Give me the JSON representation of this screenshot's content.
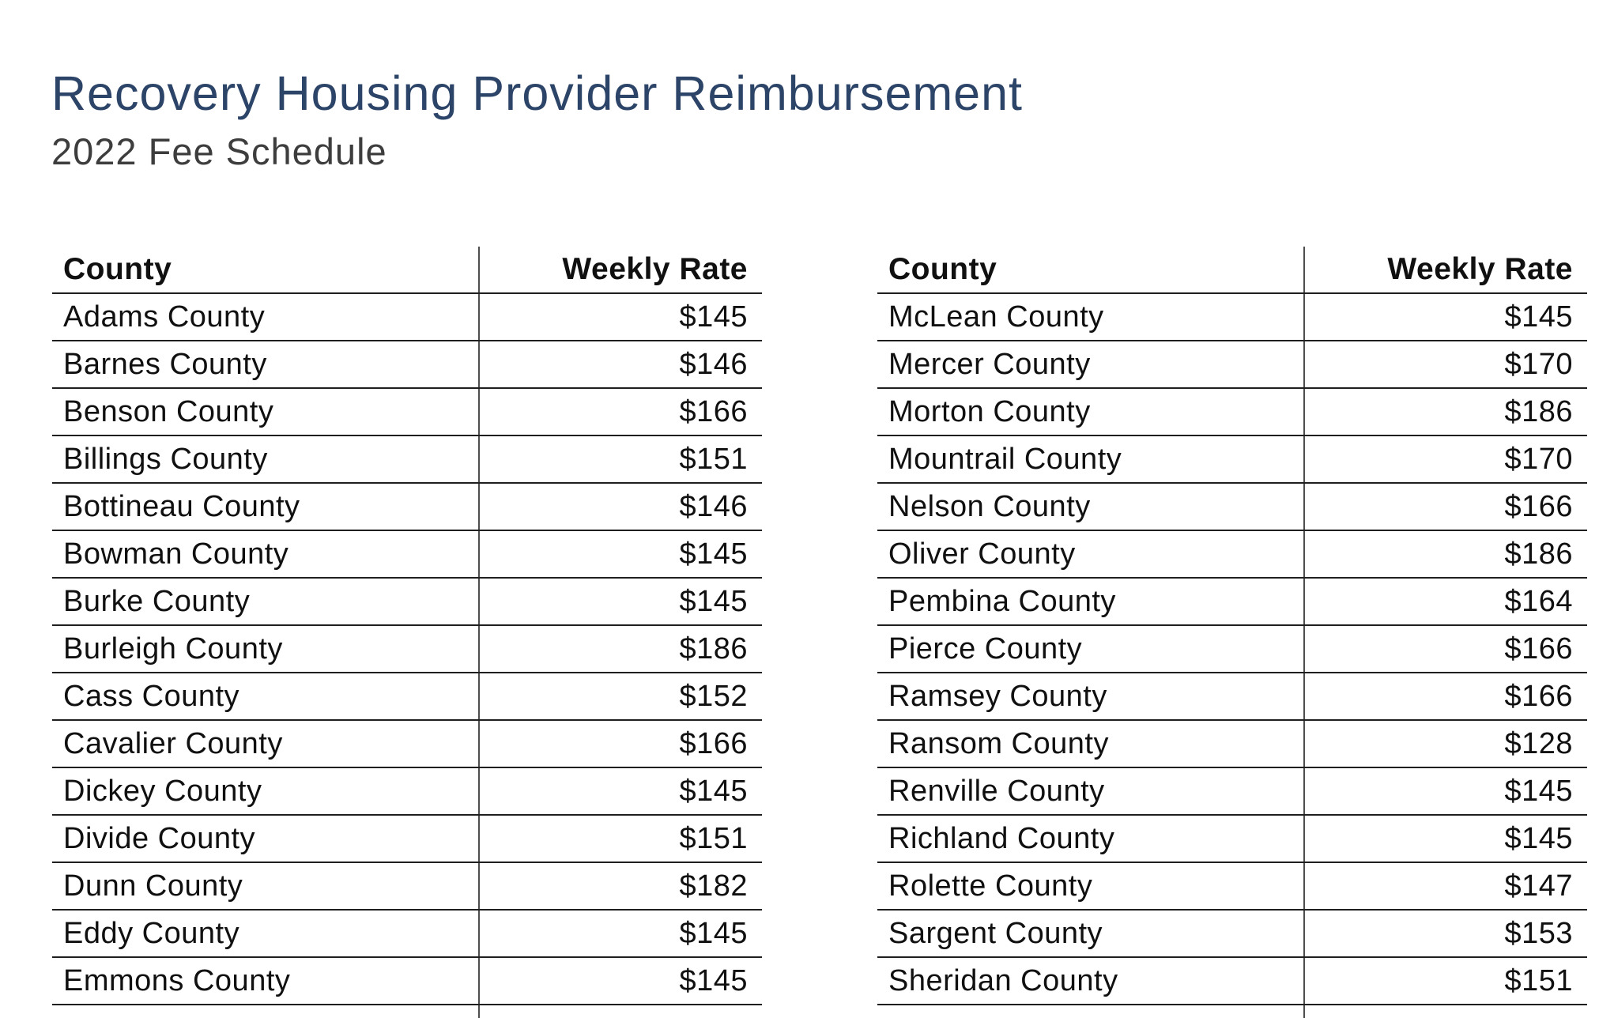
{
  "page": {
    "title": "Recovery Housing Provider Reimbursement",
    "subtitle": "2022 Fee Schedule"
  },
  "colors": {
    "title_navy": "#2b4468",
    "subtitle_gray": "#3d3d3d",
    "table_text": "#101010",
    "row_line": "#1f1f1f",
    "column_divider": "#4e4e4e",
    "background": "#ffffff"
  },
  "tables": [
    {
      "headers": {
        "county": "County",
        "rate": "Weekly Rate"
      },
      "rows": [
        {
          "county": "Adams County",
          "rate": "$145"
        },
        {
          "county": "Barnes County",
          "rate": "$146"
        },
        {
          "county": "Benson County",
          "rate": "$166"
        },
        {
          "county": "Billings County",
          "rate": "$151"
        },
        {
          "county": "Bottineau County",
          "rate": "$146"
        },
        {
          "county": "Bowman County",
          "rate": "$145"
        },
        {
          "county": "Burke County",
          "rate": "$145"
        },
        {
          "county": "Burleigh County",
          "rate": "$186"
        },
        {
          "county": "Cass County",
          "rate": "$152"
        },
        {
          "county": "Cavalier County",
          "rate": "$166"
        },
        {
          "county": "Dickey County",
          "rate": "$145"
        },
        {
          "county": "Divide County",
          "rate": "$151"
        },
        {
          "county": "Dunn County",
          "rate": "$182"
        },
        {
          "county": "Eddy County",
          "rate": "$145"
        },
        {
          "county": "Emmons County",
          "rate": "$145"
        }
      ]
    },
    {
      "headers": {
        "county": "County",
        "rate": "Weekly Rate"
      },
      "rows": [
        {
          "county": "McLean County",
          "rate": "$145"
        },
        {
          "county": "Mercer County",
          "rate": "$170"
        },
        {
          "county": "Morton County",
          "rate": "$186"
        },
        {
          "county": "Mountrail County",
          "rate": "$170"
        },
        {
          "county": "Nelson County",
          "rate": "$166"
        },
        {
          "county": "Oliver County",
          "rate": "$186"
        },
        {
          "county": "Pembina County",
          "rate": "$164"
        },
        {
          "county": "Pierce County",
          "rate": "$166"
        },
        {
          "county": "Ramsey County",
          "rate": "$166"
        },
        {
          "county": "Ransom County",
          "rate": "$128"
        },
        {
          "county": "Renville County",
          "rate": "$145"
        },
        {
          "county": "Richland County",
          "rate": "$145"
        },
        {
          "county": "Rolette County",
          "rate": "$147"
        },
        {
          "county": "Sargent County",
          "rate": "$153"
        },
        {
          "county": "Sheridan County",
          "rate": "$151"
        }
      ]
    }
  ]
}
